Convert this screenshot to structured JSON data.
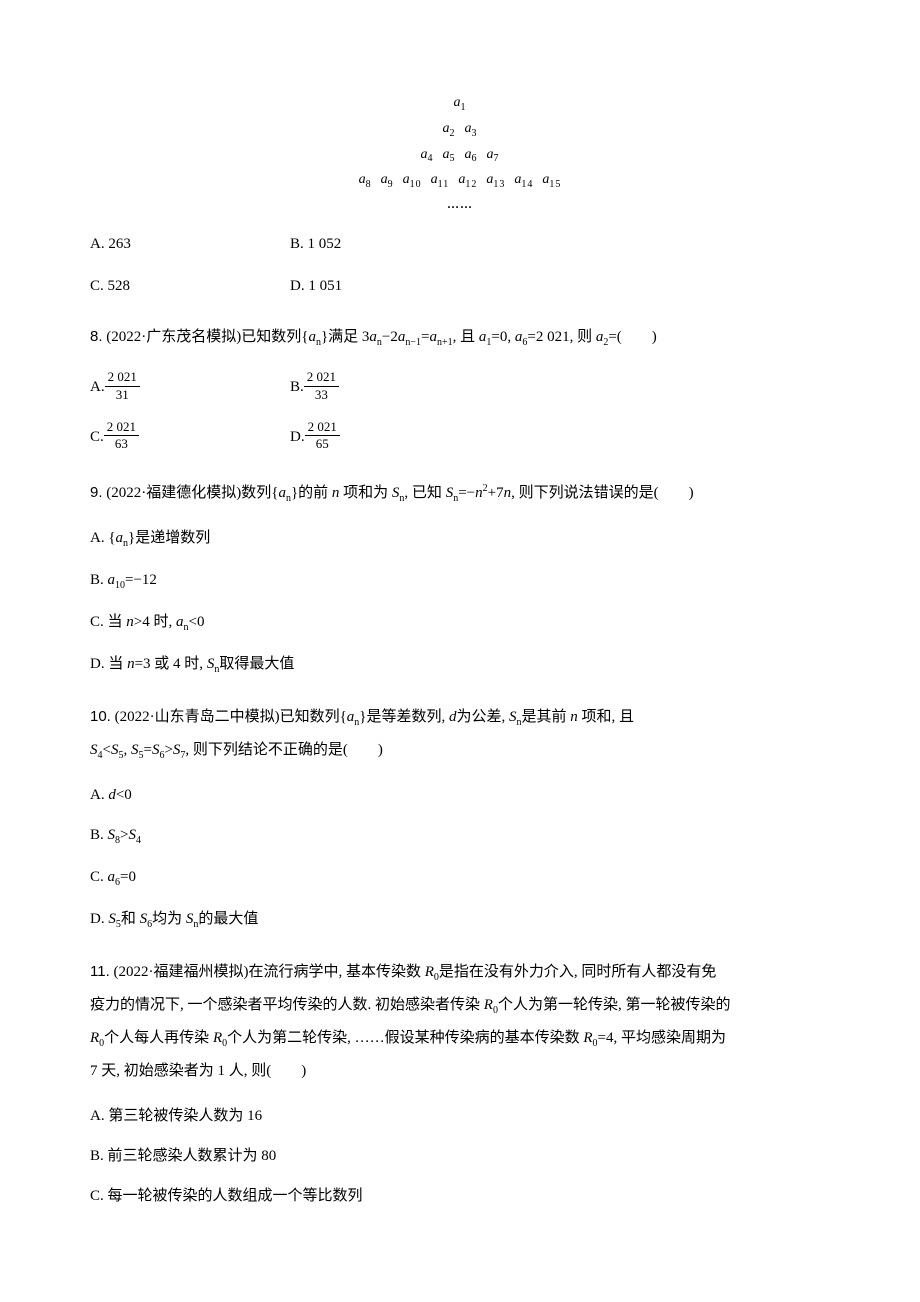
{
  "triangle": {
    "r1": [
      [
        "a",
        "1"
      ]
    ],
    "r2": [
      [
        "a",
        "2"
      ],
      [
        "a",
        "3"
      ]
    ],
    "r3": [
      [
        "a",
        "4"
      ],
      [
        "a",
        "5"
      ],
      [
        "a",
        "6"
      ],
      [
        "a",
        "7"
      ]
    ],
    "r4": [
      [
        "a",
        "8"
      ],
      [
        "a",
        "9"
      ],
      [
        "a",
        "10"
      ],
      [
        "a",
        "11"
      ],
      [
        "a",
        "12"
      ],
      [
        "a",
        "13"
      ],
      [
        "a",
        "14"
      ],
      [
        "a",
        "15"
      ]
    ],
    "dots": "……"
  },
  "q7_opts": {
    "A": "A. 263",
    "B": "B. 1 052",
    "C": "C. 528",
    "D": "D. 1 051"
  },
  "q8": {
    "num": "8.",
    "src": "(2022·广东茂名模拟)已知数列{",
    "an": "a",
    "an_sub": "n",
    "mid1": "}满足 3",
    "t1": "a",
    "t1s": "n",
    "mid2": "−2",
    "t2": "a",
    "t2s": "n−1",
    "mid3": "=",
    "t3": "a",
    "t3s": "n+1",
    "mid4": ", 且 ",
    "a1": "a",
    "a1s": "1",
    "eq0": "=0, ",
    "a6": "a",
    "a6s": "6",
    "eq2021": "=2 021, 则 ",
    "a2": "a",
    "a2s": "2",
    "tail": "=(　　)"
  },
  "q8_opts": {
    "A_label": "A.",
    "A_num": "2 021",
    "A_den": "31",
    "B_label": "B.",
    "B_num": "2 021",
    "B_den": "33",
    "C_label": "C.",
    "C_num": "2 021",
    "C_den": "63",
    "D_label": "D.",
    "D_num": "2 021",
    "D_den": "65"
  },
  "q9": {
    "num": "9.",
    "src": "(2022·福建德化模拟)数列{",
    "an": "a",
    "ans": "n",
    "mid1": "}的前 ",
    "n": "n",
    "mid2": " 项和为 ",
    "Sn": "S",
    "Sns": "n",
    "mid3": ", 已知 ",
    "Sn2": "S",
    "Sn2s": "n",
    "eq": "=−",
    "n2": "n",
    "sq": "2",
    "plus": "+7",
    "n3": "n",
    "tail": ", 则下列说法错误的是(　　)"
  },
  "q9_opts": {
    "A_pre": "A. {",
    "A_a": "a",
    "A_as": "n",
    "A_post": "}是递增数列",
    "B_pre": "B. ",
    "B_a": "a",
    "B_as": "10",
    "B_post": "=−12",
    "C_pre": "C. 当 ",
    "C_n": "n",
    "C_mid": ">4 时, ",
    "C_a": "a",
    "C_as": "n",
    "C_post": "<0",
    "D_pre": "D. 当 ",
    "D_n": "n",
    "D_mid": "=3 或 4 时, ",
    "D_S": "S",
    "D_Ss": "n",
    "D_post": "取得最大值"
  },
  "q10": {
    "num": "10.",
    "src": "(2022·山东青岛二中模拟)已知数列{",
    "an": "a",
    "ans": "n",
    "mid1": "}是等差数列, ",
    "d": "d",
    "mid2": "为公差, ",
    "Sn": "S",
    "Sns": "n",
    "mid3": "是其前 ",
    "n": "n",
    "mid4": " 项和, 且",
    "line2_S4": "S",
    "S4s": "4",
    "lt1": "<",
    "S5": "S",
    "S5s": "5",
    "comma1": ", ",
    "S5b": "S",
    "S5bs": "5",
    "eq": "=",
    "S6": "S",
    "S6s": "6",
    "gt": ">",
    "S7": "S",
    "S7s": "7",
    "tail": ", 则下列结论不正确的是(　　)"
  },
  "q10_opts": {
    "A_pre": "A. ",
    "A_d": "d",
    "A_post": "<0",
    "B_pre": "B. ",
    "B_S8": "S",
    "B_S8s": "8",
    "B_gt": ">",
    "B_S4": "S",
    "B_S4s": "4",
    "C_pre": "C. ",
    "C_a": "a",
    "C_as": "6",
    "C_post": "=0",
    "D_pre": "D. ",
    "D_S5": "S",
    "D_S5s": "5",
    "D_and": "和 ",
    "D_S6": "S",
    "D_S6s": "6",
    "D_mid": "均为 ",
    "D_Sn": "S",
    "D_Sns": "n",
    "D_post": "的最大值"
  },
  "q11": {
    "num": "11.",
    "l1a": "(2022·福建福州模拟)在流行病学中, 基本传染数 ",
    "R0": "R",
    "R0s": "0",
    "l1b": "是指在没有外力介入, 同时所有人都没有免",
    "l2a": "疫力的情况下, 一个感染者平均传染的人数. 初始感染者传染 ",
    "R0b": "R",
    "R0bs": "0",
    "l2b": "个人为第一轮传染, 第一轮被传染的",
    "l3a_R": "R",
    "l3a_Rs": "0",
    "l3b": "个人每人再传染 ",
    "l3c_R": "R",
    "l3c_Rs": "0",
    "l3d": "个人为第二轮传染, ……假设某种传染病的基本传染数 ",
    "l3e_R": "R",
    "l3e_Rs": "0",
    "l3f": "=4, 平均感染周期为",
    "l4": "7 天, 初始感染者为 1 人, 则(　　)"
  },
  "q11_opts": {
    "A": "A. 第三轮被传染人数为 16",
    "B": "B. 前三轮感染人数累计为 80",
    "C": "C. 每一轮被传染的人数组成一个等比数列"
  }
}
